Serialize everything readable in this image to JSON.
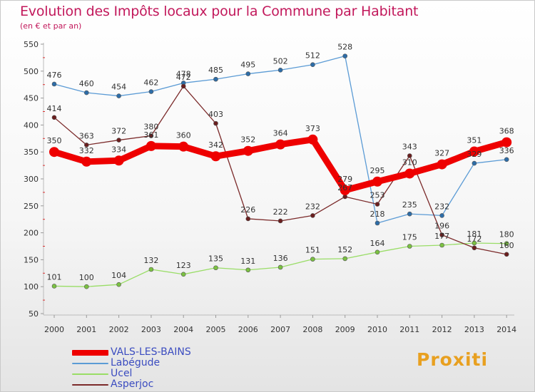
{
  "chart_data": {
    "type": "line",
    "title": "Evolution des Impôts locaux pour la Commune par Habitant",
    "subtitle": "(en € et par an)",
    "categories": [
      "2000",
      "2001",
      "2002",
      "2003",
      "2004",
      "2005",
      "2006",
      "2007",
      "2008",
      "2009",
      "2010",
      "2011",
      "2012",
      "2013",
      "2014"
    ],
    "ylim": [
      50,
      550
    ],
    "yticks": [
      50,
      100,
      150,
      200,
      250,
      300,
      350,
      400,
      450,
      500,
      550
    ],
    "grid": false,
    "legend_position": "bottom-left",
    "series": [
      {
        "name": "VALS-LES-BAINS",
        "color": "#ee0000",
        "values": [
          350,
          332,
          334,
          361,
          360,
          342,
          352,
          364,
          373,
          279,
          295,
          310,
          327,
          351,
          368
        ]
      },
      {
        "name": "Labégude",
        "color": "#5b9bd5",
        "values": [
          476,
          460,
          454,
          462,
          478,
          485,
          495,
          502,
          512,
          528,
          218,
          235,
          232,
          329,
          336
        ]
      },
      {
        "name": "Ucel",
        "color": "#99dd66",
        "values": [
          101,
          100,
          104,
          132,
          123,
          135,
          131,
          136,
          151,
          152,
          164,
          175,
          177,
          181,
          180
        ]
      },
      {
        "name": "Asperjoc",
        "color": "#7b2a2a",
        "values": [
          414,
          363,
          372,
          380,
          472,
          403,
          226,
          222,
          232,
          267,
          253,
          343,
          196,
          172,
          160
        ]
      }
    ]
  },
  "logo": {
    "text": "Proxiti"
  }
}
